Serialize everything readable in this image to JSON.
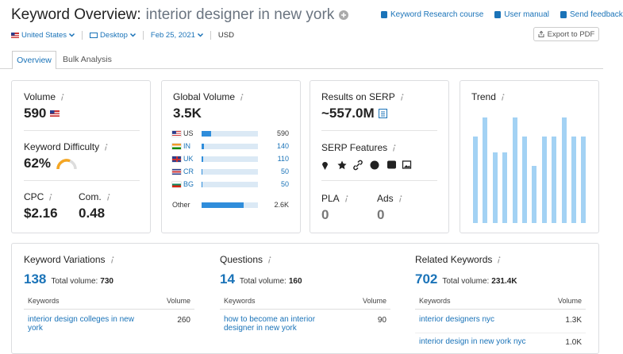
{
  "header": {
    "title": "Keyword Overview:",
    "keyword": "interior designer in new york",
    "links": [
      "Keyword Research course",
      "User manual",
      "Send feedback"
    ],
    "filters": [
      "United States",
      "Desktop",
      "Feb 25, 2021"
    ],
    "currency": "USD",
    "export": "Export to PDF"
  },
  "tabs": [
    "Overview",
    "Bulk Analysis"
  ],
  "volume": {
    "label": "Volume",
    "value": "590"
  },
  "difficulty": {
    "label": "Keyword Difficulty",
    "value": 62,
    "value_label": "62%"
  },
  "cpc": {
    "label": "CPC",
    "value": "$2.16"
  },
  "competition": {
    "label": "Com.",
    "value": "0.48"
  },
  "global_volume": {
    "label": "Global Volume",
    "total": {
      "value": 3500,
      "label": "3.5K"
    },
    "rows": [
      {
        "country": "US",
        "volume": 590
      },
      {
        "country": "IN",
        "volume": 140
      },
      {
        "country": "UK",
        "volume": 110
      },
      {
        "country": "CR",
        "volume": 50
      },
      {
        "country": "BG",
        "volume": 50
      },
      {
        "country": "Other",
        "volume": {
          "value": 2600,
          "label": "2.6K"
        }
      }
    ]
  },
  "serp": {
    "label": "Results on SERP",
    "value": "~557.0M"
  },
  "serp_features": {
    "label": "SERP Features"
  },
  "pla": {
    "label": "PLA",
    "value": "0"
  },
  "ads": {
    "label": "Ads",
    "value": "0"
  },
  "trend": {
    "label": "Trend",
    "values": [
      0.82,
      1,
      0.67,
      0.67,
      1,
      0.82,
      0.54,
      0.82,
      0.82,
      1,
      0.82,
      0.82
    ],
    "ylim": [
      0,
      1
    ]
  },
  "panels": [
    {
      "title": "Keyword Variations",
      "count": "138",
      "total_label": "Total volume:",
      "total": "730",
      "columns": [
        "Keywords",
        "Volume"
      ],
      "rows": [
        [
          "interior design colleges in new york",
          "260"
        ]
      ]
    },
    {
      "title": "Questions",
      "count": "14",
      "total_label": "Total volume:",
      "total": "160",
      "columns": [
        "Keywords",
        "Volume"
      ],
      "rows": [
        [
          "how to become an interior designer in new york",
          "90"
        ]
      ]
    },
    {
      "title": "Related Keywords",
      "count": "702",
      "total_label": "Total volume:",
      "total": "231.4K",
      "columns": [
        "Keywords",
        "Volume"
      ],
      "rows": [
        [
          "interior designers nyc",
          "1.3K"
        ],
        [
          "interior design in new york nyc",
          "1.0K"
        ]
      ]
    }
  ]
}
